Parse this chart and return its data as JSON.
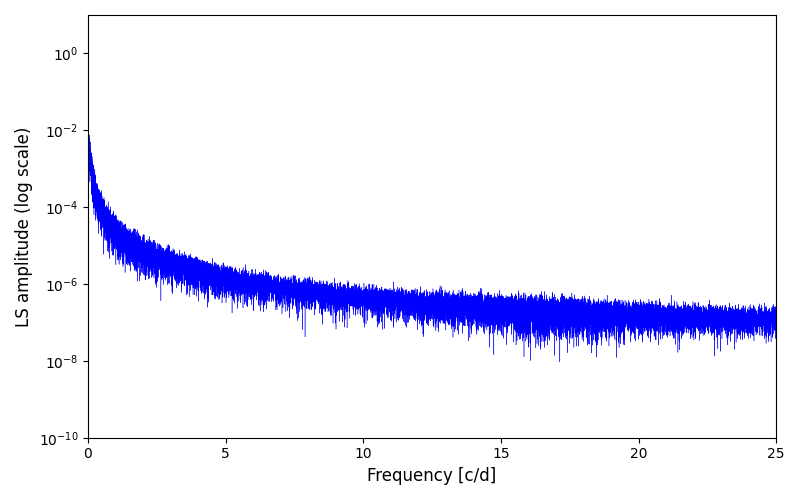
{
  "xlabel": "Frequency [c/d]",
  "ylabel": "LS amplitude (log scale)",
  "line_color": "#0000ff",
  "xlim": [
    0,
    25
  ],
  "ylim_log_min": -10,
  "ylim_log_max": 1,
  "freq_max": 25,
  "n_points": 25000,
  "seed": 42,
  "figsize": [
    8.0,
    5.0
  ],
  "dpi": 100,
  "bg_color": "#ffffff",
  "linewidth": 0.3
}
